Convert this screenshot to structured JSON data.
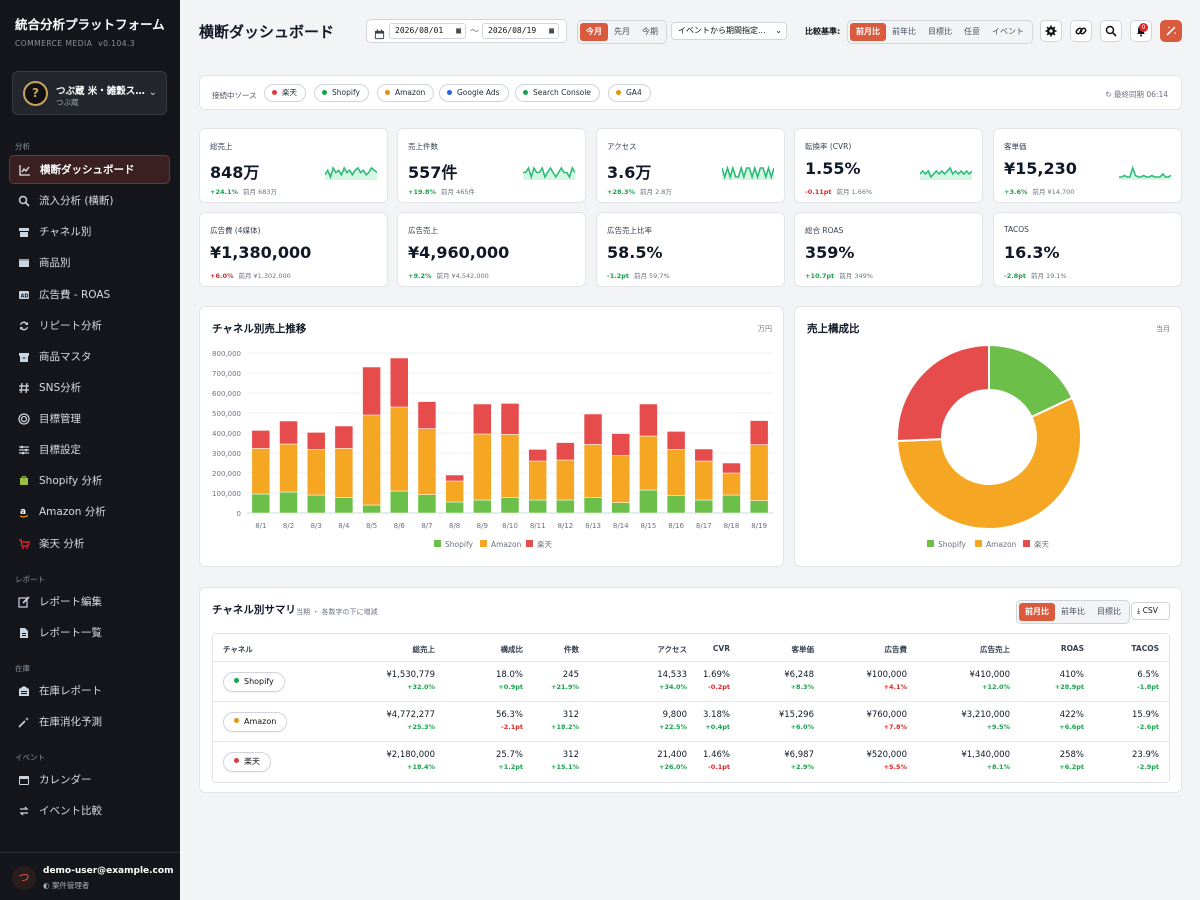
{
  "app": {
    "title": "統合分析プラットフォーム",
    "sub": "COMMERCE MEDIA",
    "version": "v0.104.3"
  },
  "store": {
    "name": "つぶ蔵 米・雑穀スト...",
    "sub": "つぶ蔵"
  },
  "nav": {
    "sec_analysis": "分析",
    "sec_report": "レポート",
    "sec_inventory": "在庫",
    "sec_event": "イベント",
    "items": [
      {
        "label": "横断ダッシュボード",
        "icon": "chart-line-icon"
      },
      {
        "label": "流入分析 (横断)",
        "icon": "search-icon"
      },
      {
        "label": "チャネル別",
        "icon": "store-icon"
      },
      {
        "label": "商品別",
        "icon": "box-icon"
      },
      {
        "label": "広告費 - ROAS",
        "icon": "ad-icon"
      },
      {
        "label": "リピート分析",
        "icon": "repeat-icon"
      },
      {
        "label": "商品マスタ",
        "icon": "archive-icon"
      },
      {
        "label": "SNS分析",
        "icon": "hashtag-icon"
      },
      {
        "label": "目標管理",
        "icon": "target-icon"
      },
      {
        "label": "目標設定",
        "icon": "sliders-icon"
      },
      {
        "label": "Shopify 分析",
        "icon": "shopify-icon"
      },
      {
        "label": "Amazon 分析",
        "icon": "amazon-icon"
      },
      {
        "label": "楽天 分析",
        "icon": "cart-icon"
      },
      {
        "label": "レポート編集",
        "icon": "edit-icon"
      },
      {
        "label": "レポート一覧",
        "icon": "file-icon"
      },
      {
        "label": "在庫レポート",
        "icon": "warehouse-icon"
      },
      {
        "label": "在庫消化予測",
        "icon": "magic-icon"
      },
      {
        "label": "カレンダー",
        "icon": "calendar-icon"
      },
      {
        "label": "イベント比較",
        "icon": "compare-icon"
      }
    ]
  },
  "user": {
    "email": "demo-user@example.com",
    "role": "案件管理者",
    "avatar": "つ"
  },
  "header": {
    "title": "横断ダッシュボード",
    "date_from": "2026/08/01",
    "date_to": "2026/08/19",
    "date_sep": "〜",
    "period_buttons": [
      "今月",
      "先月",
      "今期"
    ],
    "event_select": "イベントから期間指定...",
    "compare_label": "比較基準:",
    "compare_buttons": [
      "前月比",
      "前年比",
      "目標比",
      "任意",
      "イベント"
    ],
    "notif_count": "0"
  },
  "sources": {
    "label": "接続中ソース",
    "items": [
      {
        "name": "楽天",
        "color": "#dc3b3b"
      },
      {
        "name": "Shopify",
        "color": "#16a34a"
      },
      {
        "name": "Amazon",
        "color": "#e8910c"
      },
      {
        "name": "Google Ads",
        "color": "#2563eb"
      },
      {
        "name": "Search Console",
        "color": "#16a34a"
      },
      {
        "name": "GA4",
        "color": "#e8910c"
      }
    ],
    "sync": "最終同期 06:14"
  },
  "kpis": [
    {
      "label": "総売上",
      "value": "848万",
      "change": "+24.1%",
      "prev": "前月 683万",
      "dir": "up",
      "spark": [
        3,
        5,
        2,
        6,
        4,
        5,
        3,
        6,
        4,
        5,
        3,
        5,
        6,
        4,
        5,
        3,
        4,
        6,
        5,
        4
      ]
    },
    {
      "label": "売上件数",
      "value": "557件",
      "change": "+19.8%",
      "prev": "前月 465件",
      "dir": "up",
      "spark": [
        4,
        4,
        5,
        3,
        5,
        4,
        4,
        5,
        3,
        4,
        5,
        4,
        3,
        4,
        5,
        4,
        4,
        3,
        5,
        4
      ]
    },
    {
      "label": "アクセス",
      "value": "3.6万",
      "change": "+28.3%",
      "prev": "前月 2.8万",
      "dir": "up",
      "spark": [
        5,
        4,
        5,
        4,
        5,
        4,
        4,
        5,
        4,
        5,
        5,
        4,
        5,
        4,
        5,
        5,
        4,
        5,
        4,
        5
      ]
    },
    {
      "label": "転換率 (CVR)",
      "value": "1.55%",
      "change": "-0.11pt",
      "prev": "前月 1.66%",
      "dir": "down",
      "spark": [
        4,
        5,
        4,
        5,
        3,
        4,
        5,
        4,
        5,
        4,
        5,
        6,
        4,
        5,
        4,
        5,
        4,
        5,
        4,
        5
      ]
    },
    {
      "label": "客単価",
      "value": "¥15,230",
      "change": "+3.6%",
      "prev": "前月 ¥14,700",
      "dir": "up",
      "spark": [
        3,
        3,
        4,
        3,
        3,
        9,
        4,
        3,
        3,
        4,
        3,
        3,
        4,
        3,
        3,
        3,
        5,
        3,
        3,
        4
      ]
    },
    {
      "label": "広告費 (4媒体)",
      "value": "¥1,380,000",
      "change": "+6.0%",
      "prev": "前月 ¥1,302,000",
      "dir": "down"
    },
    {
      "label": "広告売上",
      "value": "¥4,960,000",
      "change": "+9.2%",
      "prev": "前月 ¥4,542,000",
      "dir": "up"
    },
    {
      "label": "広告売上比率",
      "value": "58.5%",
      "change": "-1.2pt",
      "prev": "前月 59.7%",
      "dir": "up"
    },
    {
      "label": "総合 ROAS",
      "value": "359%",
      "change": "+10.7pt",
      "prev": "前月 349%",
      "dir": "up"
    },
    {
      "label": "TACOS",
      "value": "16.3%",
      "change": "-2.8pt",
      "prev": "前月 19.1%",
      "dir": "up"
    }
  ],
  "chart_data": [
    {
      "type": "bar",
      "stacked": true,
      "title": "チャネル別売上推移",
      "note": "万円",
      "categories": [
        "8/1",
        "8/2",
        "8/3",
        "8/4",
        "8/5",
        "8/6",
        "8/7",
        "8/8",
        "8/9",
        "8/10",
        "8/11",
        "8/12",
        "8/13",
        "8/14",
        "8/15",
        "8/16",
        "8/17",
        "8/18",
        "8/19"
      ],
      "y_ticks": [
        "0",
        "100,000",
        "200,000",
        "300,000",
        "400,000",
        "500,000",
        "600,000",
        "700,000",
        "800,000"
      ],
      "ylim": [
        0,
        800000
      ],
      "series": [
        {
          "name": "Shopify",
          "color": "#6cc04a",
          "values": [
            95000,
            105000,
            90000,
            78000,
            40000,
            110000,
            92000,
            55000,
            65000,
            78000,
            65000,
            65000,
            78000,
            52000,
            115000,
            88000,
            65000,
            90000,
            62000
          ]
        },
        {
          "name": "Amazon",
          "color": "#f5a623",
          "values": [
            228000,
            240000,
            228000,
            245000,
            450000,
            420000,
            330000,
            105000,
            330000,
            315000,
            195000,
            200000,
            265000,
            235000,
            270000,
            230000,
            195000,
            110000,
            280000
          ]
        },
        {
          "name": "楽天",
          "color": "#e74c4c",
          "values": [
            90000,
            115000,
            85000,
            112000,
            240000,
            245000,
            135000,
            30000,
            150000,
            155000,
            58000,
            87000,
            152000,
            110000,
            160000,
            90000,
            60000,
            50000,
            120000
          ]
        }
      ],
      "grid": true,
      "legend": "bottom"
    },
    {
      "type": "pie",
      "donut": true,
      "title": "売上構成比",
      "note": "当月",
      "slices": [
        {
          "name": "Shopify",
          "value": 18.0,
          "color": "#6cc04a"
        },
        {
          "name": "Amazon",
          "value": 56.3,
          "color": "#f5a623"
        },
        {
          "name": "楽天",
          "value": 25.7,
          "color": "#e74c4c"
        }
      ],
      "legend": "bottom"
    }
  ],
  "summary": {
    "title": "チャネル別サマリ",
    "sub": "当期 ・ 各数字の下に増減",
    "compare_buttons": [
      "前月比",
      "前年比",
      "目標比"
    ],
    "csv": "CSV",
    "columns": [
      "チャネル",
      "総売上",
      "構成比",
      "件数",
      "アクセス",
      "CVR",
      "客単価",
      "広告費",
      "広告売上",
      "ROAS",
      "TACOS"
    ],
    "rows": [
      {
        "channel": "Shopify",
        "color": "#16a34a",
        "cells": [
          {
            "v": "¥1,530,779",
            "c": "+32.0%",
            "d": "up"
          },
          {
            "v": "18.0%",
            "c": "+0.9pt",
            "d": "up"
          },
          {
            "v": "245",
            "c": "+21.9%",
            "d": "up"
          },
          {
            "v": "14,533",
            "c": "+34.0%",
            "d": "up"
          },
          {
            "v": "1.69%",
            "c": "-0.2pt",
            "d": "down"
          },
          {
            "v": "¥6,248",
            "c": "+8.3%",
            "d": "up"
          },
          {
            "v": "¥100,000",
            "c": "+4.1%",
            "d": "down"
          },
          {
            "v": "¥410,000",
            "c": "+12.0%",
            "d": "up"
          },
          {
            "v": "410%",
            "c": "+28.9pt",
            "d": "up"
          },
          {
            "v": "6.5%",
            "c": "-1.8pt",
            "d": "up"
          }
        ]
      },
      {
        "channel": "Amazon",
        "color": "#e8910c",
        "cells": [
          {
            "v": "¥4,772,277",
            "c": "+25.3%",
            "d": "up"
          },
          {
            "v": "56.3%",
            "c": "-2.1pt",
            "d": "down"
          },
          {
            "v": "312",
            "c": "+18.2%",
            "d": "up"
          },
          {
            "v": "9,800",
            "c": "+22.5%",
            "d": "up"
          },
          {
            "v": "3.18%",
            "c": "+0.4pt",
            "d": "up"
          },
          {
            "v": "¥15,296",
            "c": "+6.0%",
            "d": "up"
          },
          {
            "v": "¥760,000",
            "c": "+7.8%",
            "d": "down"
          },
          {
            "v": "¥3,210,000",
            "c": "+9.5%",
            "d": "up"
          },
          {
            "v": "422%",
            "c": "+6.6pt",
            "d": "up"
          },
          {
            "v": "15.9%",
            "c": "-2.6pt",
            "d": "up"
          }
        ]
      },
      {
        "channel": "楽天",
        "color": "#dc3b3b",
        "cells": [
          {
            "v": "¥2,180,000",
            "c": "+18.4%",
            "d": "up"
          },
          {
            "v": "25.7%",
            "c": "+1.2pt",
            "d": "up"
          },
          {
            "v": "312",
            "c": "+15.1%",
            "d": "up"
          },
          {
            "v": "21,400",
            "c": "+26.0%",
            "d": "up"
          },
          {
            "v": "1.46%",
            "c": "-0.1pt",
            "d": "down"
          },
          {
            "v": "¥6,987",
            "c": "+2.9%",
            "d": "up"
          },
          {
            "v": "¥520,000",
            "c": "+5.5%",
            "d": "down"
          },
          {
            "v": "¥1,340,000",
            "c": "+8.1%",
            "d": "up"
          },
          {
            "v": "258%",
            "c": "+6.2pt",
            "d": "up"
          },
          {
            "v": "23.9%",
            "c": "-2.9pt",
            "d": "up"
          }
        ]
      }
    ]
  }
}
